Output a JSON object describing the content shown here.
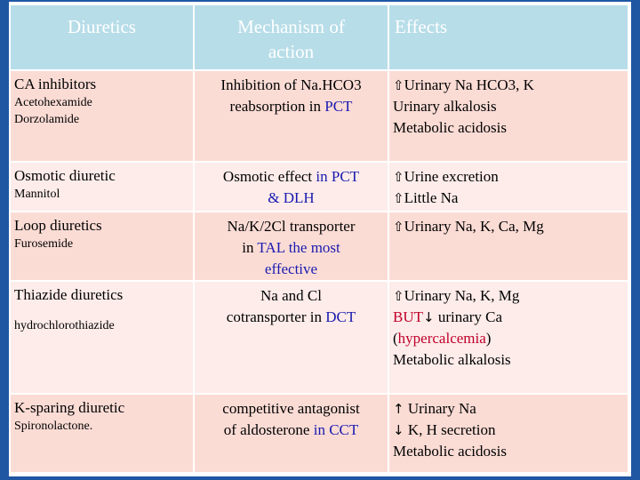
{
  "headers": {
    "col1": "Diuretics",
    "col2_line1": "Mechanism of",
    "col2_line2": "action",
    "col3": "Effects"
  },
  "rows": [
    {
      "drug": "CA inhibitors",
      "examples": [
        "Acetohexamide",
        "Dorzolamide"
      ],
      "mech_parts": [
        "Inhibition of Na.HCO3",
        "reabsorption in ",
        "PCT"
      ],
      "effects": [
        "Urinary Na HCO3, K",
        "Urinary alkalosis",
        "Metabolic acidosis"
      ]
    },
    {
      "drug": "Osmotic diuretic",
      "examples": [
        "Mannitol"
      ],
      "mech_parts": [
        "Osmotic effect ",
        "in PCT",
        "& DLH"
      ],
      "effects": [
        "Urine excretion",
        "Little Na"
      ]
    },
    {
      "drug": "Loop diuretics",
      "examples": [
        "Furosemide"
      ],
      "mech_parts": [
        "Na/K/2Cl  transporter",
        "in ",
        "TAL the most",
        "effective"
      ],
      "effects": [
        "Urinary Na, K, Ca, Mg"
      ]
    },
    {
      "drug": "Thiazide diuretics",
      "examples": [
        "hydrochlorothiazide"
      ],
      "mech_parts": [
        "Na and Cl",
        "cotransporter in ",
        "DCT"
      ],
      "effects": [
        "Urinary Na, K, Mg",
        "BUT",
        " urinary Ca",
        "(",
        "hypercalcemia",
        ")",
        "Metabolic alkalosis"
      ]
    },
    {
      "drug": "K-sparing diuretic",
      "examples": [
        "Spironolactone."
      ],
      "mech_parts": [
        "competitive antagonist",
        "of aldosterone ",
        "in CCT"
      ],
      "effects": [
        "Urinary Na",
        "K, H secretion",
        "Metabolic acidosis"
      ]
    }
  ],
  "symbols": {
    "up_outline": "⇧",
    "up": "↑",
    "down": "↓"
  },
  "colors": {
    "frame": "#1f57a3",
    "header_bg": "#b7dde8",
    "row_bg": "#fbdcd5",
    "row_alt_bg": "#fdecea",
    "blue_text": "#1a1ab0",
    "red_text": "#c0002a"
  }
}
